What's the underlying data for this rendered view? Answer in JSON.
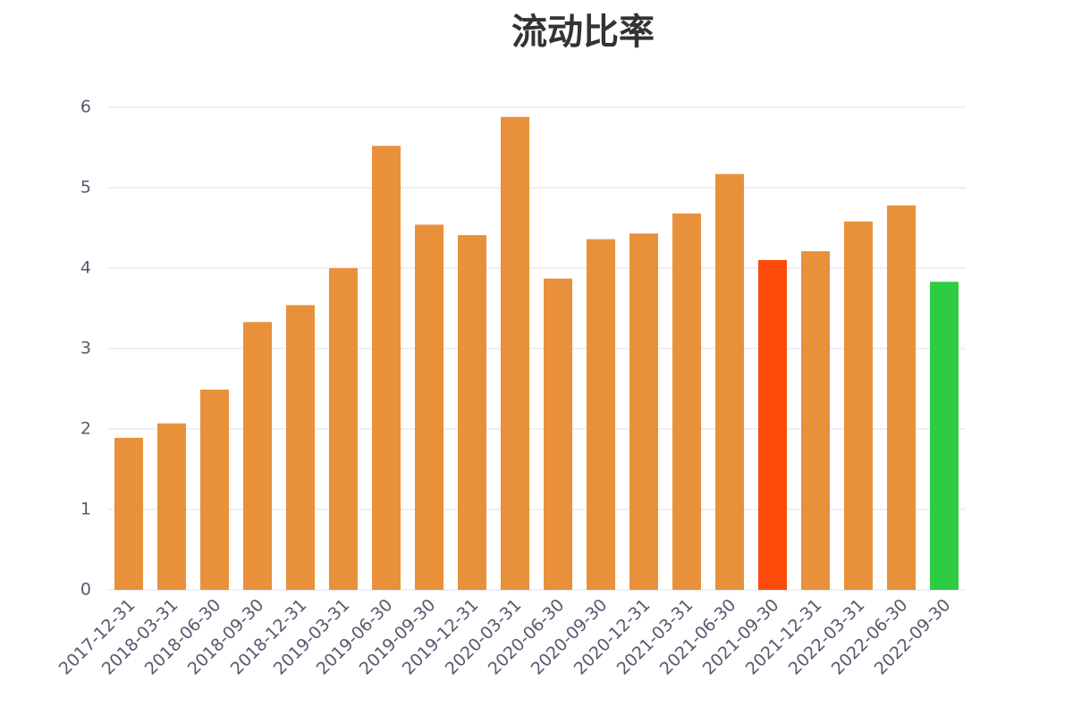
{
  "chart_data": {
    "type": "bar",
    "title": "流动比率",
    "categories": [
      "2017-12-31",
      "2018-03-31",
      "2018-06-30",
      "2018-09-30",
      "2018-12-31",
      "2019-03-31",
      "2019-06-30",
      "2019-09-30",
      "2019-12-31",
      "2020-03-31",
      "2020-06-30",
      "2020-09-30",
      "2020-12-31",
      "2021-03-31",
      "2021-06-30",
      "2021-09-30",
      "2021-12-31",
      "2022-03-31",
      "2022-06-30",
      "2022-09-30"
    ],
    "values": [
      1.89,
      2.07,
      2.49,
      3.33,
      3.54,
      4.0,
      5.52,
      4.54,
      4.41,
      5.88,
      3.87,
      4.36,
      4.43,
      4.68,
      5.17,
      4.1,
      4.21,
      4.58,
      4.78,
      3.83
    ],
    "colors": [
      "#e8913a",
      "#e8913a",
      "#e8913a",
      "#e8913a",
      "#e8913a",
      "#e8913a",
      "#e8913a",
      "#e8913a",
      "#e8913a",
      "#e8913a",
      "#e8913a",
      "#e8913a",
      "#e8913a",
      "#e8913a",
      "#e8913a",
      "#fc4a0a",
      "#e8913a",
      "#e8913a",
      "#e8913a",
      "#2ecc40"
    ],
    "ylim": [
      0,
      6
    ],
    "yticks": [
      0,
      1,
      2,
      3,
      4,
      5,
      6
    ],
    "grid": true
  }
}
